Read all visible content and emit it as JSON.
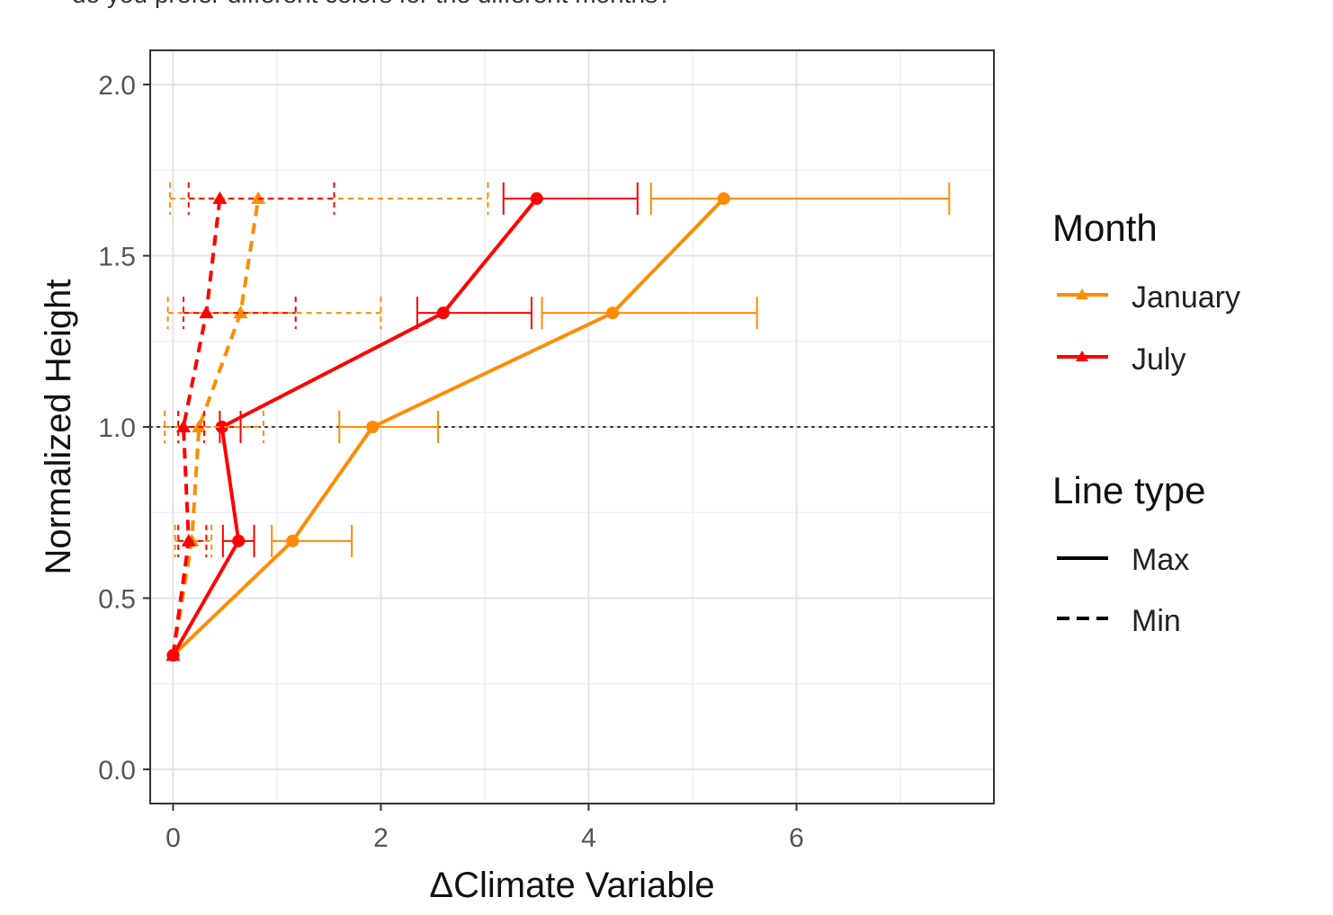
{
  "page": {
    "top_text": "do you prefer different colors for the different months?"
  },
  "chart_data": {
    "type": "line",
    "title": "",
    "xlabel": "ΔClimate Variable",
    "ylabel": "Normalized Height",
    "xlim": [
      -0.22,
      7.9
    ],
    "ylim": [
      -0.1,
      2.1
    ],
    "x_ticks": [
      0,
      2,
      4,
      6
    ],
    "x_tick_labels": [
      "0",
      "2",
      "4",
      "6"
    ],
    "y_ticks": [
      0.0,
      0.5,
      1.0,
      1.5,
      2.0
    ],
    "y_tick_labels": [
      "0.0",
      "0.5",
      "1.0",
      "1.5",
      "2.0"
    ],
    "grid": true,
    "reference_line": {
      "y": 1.0,
      "style": "dotted",
      "color": "#333333"
    },
    "series": [
      {
        "month": "January",
        "type": "Max",
        "color": "#FF8C00",
        "dash": "solid",
        "points": [
          {
            "x": 0.0,
            "y": 0.333,
            "xmin": 0.0,
            "xmax": 0.0
          },
          {
            "x": 1.15,
            "y": 0.667,
            "xmin": 0.95,
            "xmax": 1.72
          },
          {
            "x": 1.92,
            "y": 1.0,
            "xmin": 1.6,
            "xmax": 2.55
          },
          {
            "x": 4.23,
            "y": 1.333,
            "xmin": 3.55,
            "xmax": 5.62
          },
          {
            "x": 5.3,
            "y": 1.667,
            "xmin": 4.6,
            "xmax": 7.47
          }
        ]
      },
      {
        "month": "July",
        "type": "Max",
        "color": "#FF0000",
        "dash": "solid",
        "points": [
          {
            "x": 0.0,
            "y": 0.333,
            "xmin": 0.0,
            "xmax": 0.0
          },
          {
            "x": 0.63,
            "y": 0.667,
            "xmin": 0.48,
            "xmax": 0.78
          },
          {
            "x": 0.47,
            "y": 1.0,
            "xmin": 0.45,
            "xmax": 0.65
          },
          {
            "x": 2.6,
            "y": 1.333,
            "xmin": 2.35,
            "xmax": 3.45
          },
          {
            "x": 3.5,
            "y": 1.667,
            "xmin": 3.18,
            "xmax": 4.47
          }
        ]
      },
      {
        "month": "January",
        "type": "Min",
        "color": "#FF8C00",
        "dash": "dashed",
        "points": [
          {
            "x": 0.0,
            "y": 0.333,
            "xmin": 0.0,
            "xmax": 0.0
          },
          {
            "x": 0.18,
            "y": 0.667,
            "xmin": 0.02,
            "xmax": 0.37
          },
          {
            "x": 0.25,
            "y": 1.0,
            "xmin": -0.08,
            "xmax": 0.87
          },
          {
            "x": 0.65,
            "y": 1.333,
            "xmin": -0.05,
            "xmax": 2.0
          },
          {
            "x": 0.82,
            "y": 1.667,
            "xmin": -0.03,
            "xmax": 3.03
          }
        ]
      },
      {
        "month": "July",
        "type": "Min",
        "color": "#FF0000",
        "dash": "dashed",
        "points": [
          {
            "x": 0.0,
            "y": 0.333,
            "xmin": 0.0,
            "xmax": 0.0
          },
          {
            "x": 0.15,
            "y": 0.667,
            "xmin": 0.05,
            "xmax": 0.32
          },
          {
            "x": 0.1,
            "y": 1.0,
            "xmin": 0.05,
            "xmax": 0.3
          },
          {
            "x": 0.32,
            "y": 1.333,
            "xmin": 0.1,
            "xmax": 1.18
          },
          {
            "x": 0.45,
            "y": 1.667,
            "xmin": 0.15,
            "xmax": 1.55
          }
        ]
      }
    ],
    "legend": {
      "placement": "right",
      "month": {
        "title": "Month",
        "items": [
          {
            "label": "January",
            "color": "#FF8C00"
          },
          {
            "label": "July",
            "color": "#FF0000"
          }
        ]
      },
      "linetype": {
        "title": "Line type",
        "items": [
          {
            "label": "Max",
            "dash": "solid"
          },
          {
            "label": "Min",
            "dash": "dashed"
          }
        ]
      }
    }
  }
}
